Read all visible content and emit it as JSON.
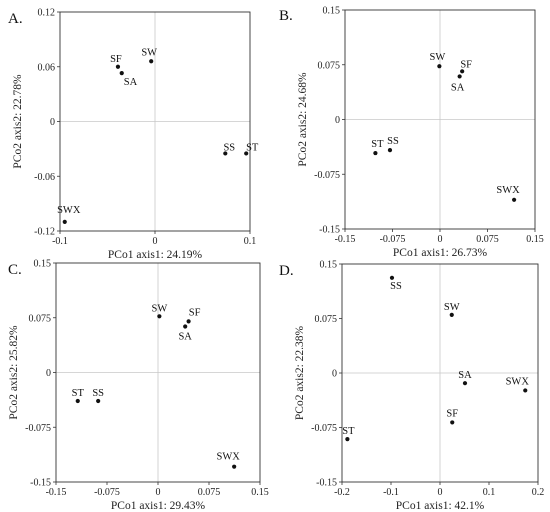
{
  "chart_data": [
    {
      "type": "scatter",
      "panel": "A.",
      "xlabel": "PCo1 axis1: 24.19%",
      "ylabel": "PCo2 axis2: 22.78%",
      "xlim": [
        -0.1,
        0.1
      ],
      "ylim": [
        -0.12,
        0.12
      ],
      "xticks": [
        -0.1,
        0,
        0.1
      ],
      "yticks": [
        -0.12,
        -0.06,
        0,
        0.06,
        0.12
      ],
      "xtick_labels": [
        "-0.1",
        "0",
        "0.1"
      ],
      "ytick_labels": [
        "-0.12",
        "-0.06",
        "0",
        "0.06",
        "0.12"
      ],
      "grid": false,
      "zero_lines": true,
      "points": [
        {
          "label": "SF",
          "x": -0.039,
          "y": 0.06
        },
        {
          "label": "SA",
          "x": -0.035,
          "y": 0.053
        },
        {
          "label": "SW",
          "x": -0.004,
          "y": 0.066
        },
        {
          "label": "SS",
          "x": 0.074,
          "y": -0.035
        },
        {
          "label": "ST",
          "x": 0.096,
          "y": -0.035
        },
        {
          "label": "SWX",
          "x": -0.095,
          "y": -0.11
        }
      ]
    },
    {
      "type": "scatter",
      "panel": "B.",
      "xlabel": "PCo1 axis1: 26.73%",
      "ylabel": "PCo2 axis2: 24.68%",
      "xlim": [
        -0.15,
        0.15
      ],
      "ylim": [
        -0.15,
        0.15
      ],
      "xticks": [
        -0.15,
        -0.075,
        0,
        0.075,
        0.15
      ],
      "yticks": [
        -0.15,
        -0.075,
        0,
        0.075,
        0.15
      ],
      "xtick_labels": [
        "-0.15",
        "-0.075",
        "0",
        "0.075",
        "0.15"
      ],
      "ytick_labels": [
        "-0.15",
        "-0.075",
        "0",
        "0.075",
        "0.15"
      ],
      "grid": false,
      "zero_lines": true,
      "points": [
        {
          "label": "SW",
          "x": -0.001,
          "y": 0.073
        },
        {
          "label": "SF",
          "x": 0.035,
          "y": 0.066
        },
        {
          "label": "SA",
          "x": 0.031,
          "y": 0.059
        },
        {
          "label": "ST",
          "x": -0.102,
          "y": -0.046
        },
        {
          "label": "SS",
          "x": -0.079,
          "y": -0.042
        },
        {
          "label": "SWX",
          "x": 0.117,
          "y": -0.11
        }
      ]
    },
    {
      "type": "scatter",
      "panel": "C.",
      "xlabel": "PCo1 axis1: 29.43%",
      "ylabel": "PCo2 axis2: 25.82%",
      "xlim": [
        -0.15,
        0.15
      ],
      "ylim": [
        -0.15,
        0.15
      ],
      "xticks": [
        -0.15,
        -0.075,
        0,
        0.075,
        0.15
      ],
      "yticks": [
        -0.15,
        -0.075,
        0,
        0.075,
        0.15
      ],
      "xtick_labels": [
        "-0.15",
        "-0.075",
        "0",
        "0.075",
        "0.15"
      ],
      "ytick_labels": [
        "-0.15",
        "-0.075",
        "0",
        "0.075",
        "0.15"
      ],
      "grid": false,
      "zero_lines": true,
      "points": [
        {
          "label": "SW",
          "x": 0.002,
          "y": 0.077
        },
        {
          "label": "SF",
          "x": 0.045,
          "y": 0.07
        },
        {
          "label": "SA",
          "x": 0.04,
          "y": 0.063
        },
        {
          "label": "ST",
          "x": -0.118,
          "y": -0.039
        },
        {
          "label": "SS",
          "x": -0.088,
          "y": -0.039
        },
        {
          "label": "SWX",
          "x": 0.112,
          "y": -0.129
        }
      ]
    },
    {
      "type": "scatter",
      "panel": "D.",
      "xlabel": "PCo1 axis1: 42.1%",
      "ylabel": "PCo2 axis2: 22.38%",
      "xlim": [
        -0.2,
        0.2
      ],
      "ylim": [
        -0.15,
        0.15
      ],
      "xticks": [
        -0.2,
        -0.1,
        0,
        0.1,
        0.2
      ],
      "yticks": [
        -0.15,
        -0.075,
        0,
        0.075,
        0.15
      ],
      "xtick_labels": [
        "-0.2",
        "-0.1",
        "0",
        "0.1",
        "0.2"
      ],
      "ytick_labels": [
        "-0.15",
        "-0.075",
        "0",
        "0.075",
        "0.15"
      ],
      "grid": false,
      "zero_lines": true,
      "points": [
        {
          "label": "SS",
          "x": -0.098,
          "y": 0.131
        },
        {
          "label": "SW",
          "x": 0.024,
          "y": 0.08
        },
        {
          "label": "SA",
          "x": 0.051,
          "y": -0.014
        },
        {
          "label": "SWX",
          "x": 0.174,
          "y": -0.024
        },
        {
          "label": "SF",
          "x": 0.025,
          "y": -0.068
        },
        {
          "label": "ST",
          "x": -0.189,
          "y": -0.091
        }
      ]
    }
  ]
}
